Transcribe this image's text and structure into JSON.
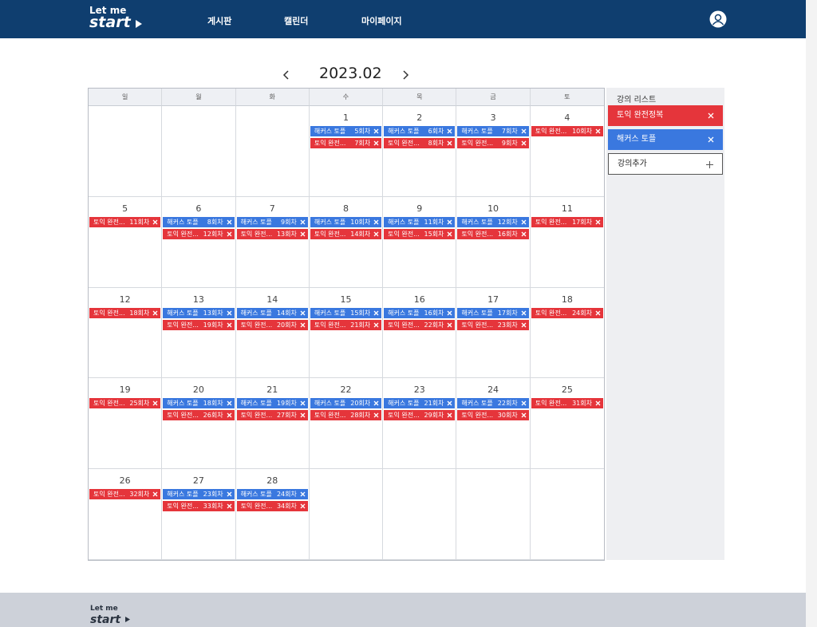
{
  "nav": {
    "logo_top": "Let me",
    "logo_bottom": "start",
    "menu": [
      "게시판",
      "캘린더",
      "마이페이지"
    ]
  },
  "calendar": {
    "month": "2023.02",
    "weekdays": [
      "일",
      "월",
      "화",
      "수",
      "목",
      "금",
      "토"
    ],
    "weeks": [
      [
        null,
        null,
        null,
        {
          "date": 1,
          "events": [
            {
              "title": "해커스 토플",
              "session": "5회차",
              "color": "#3a78df"
            },
            {
              "title": "토익 완전...",
              "session": "7회차",
              "color": "#e5353b"
            }
          ]
        },
        {
          "date": 2,
          "events": [
            {
              "title": "해커스 토플",
              "session": "6회차",
              "color": "#3a78df"
            },
            {
              "title": "토익 완전...",
              "session": "8회차",
              "color": "#e5353b"
            }
          ]
        },
        {
          "date": 3,
          "events": [
            {
              "title": "해커스 토플",
              "session": "7회차",
              "color": "#3a78df"
            },
            {
              "title": "토익 완전...",
              "session": "9회차",
              "color": "#e5353b"
            }
          ]
        },
        {
          "date": 4,
          "events": [
            {
              "title": "토익 완전...",
              "session": "10회차",
              "color": "#e5353b"
            }
          ]
        }
      ],
      [
        {
          "date": 5,
          "events": [
            {
              "title": "토익 완전...",
              "session": "11회차",
              "color": "#e5353b"
            }
          ]
        },
        {
          "date": 6,
          "events": [
            {
              "title": "해커스 토플",
              "session": "8회차",
              "color": "#3a78df"
            },
            {
              "title": "토익 완전...",
              "session": "12회차",
              "color": "#e5353b"
            }
          ]
        },
        {
          "date": 7,
          "events": [
            {
              "title": "해커스 토플",
              "session": "9회차",
              "color": "#3a78df"
            },
            {
              "title": "토익 완전...",
              "session": "13회차",
              "color": "#e5353b"
            }
          ]
        },
        {
          "date": 8,
          "events": [
            {
              "title": "해커스 토플",
              "session": "10회차",
              "color": "#3a78df"
            },
            {
              "title": "토익 완전...",
              "session": "14회차",
              "color": "#e5353b"
            }
          ]
        },
        {
          "date": 9,
          "events": [
            {
              "title": "해커스 토플",
              "session": "11회차",
              "color": "#3a78df"
            },
            {
              "title": "토익 완전...",
              "session": "15회차",
              "color": "#e5353b"
            }
          ]
        },
        {
          "date": 10,
          "events": [
            {
              "title": "해커스 토플",
              "session": "12회차",
              "color": "#3a78df"
            },
            {
              "title": "토익 완전...",
              "session": "16회차",
              "color": "#e5353b"
            }
          ]
        },
        {
          "date": 11,
          "events": [
            {
              "title": "토익 완전...",
              "session": "17회차",
              "color": "#e5353b"
            }
          ]
        }
      ],
      [
        {
          "date": 12,
          "events": [
            {
              "title": "토익 완전...",
              "session": "18회차",
              "color": "#e5353b"
            }
          ]
        },
        {
          "date": 13,
          "events": [
            {
              "title": "해커스 토플",
              "session": "13회차",
              "color": "#3a78df"
            },
            {
              "title": "토익 완전...",
              "session": "19회차",
              "color": "#e5353b"
            }
          ]
        },
        {
          "date": 14,
          "events": [
            {
              "title": "해커스 토플",
              "session": "14회차",
              "color": "#3a78df"
            },
            {
              "title": "토익 완전...",
              "session": "20회차",
              "color": "#e5353b"
            }
          ]
        },
        {
          "date": 15,
          "events": [
            {
              "title": "해커스 토플",
              "session": "15회차",
              "color": "#3a78df"
            },
            {
              "title": "토익 완전...",
              "session": "21회차",
              "color": "#e5353b"
            }
          ]
        },
        {
          "date": 16,
          "events": [
            {
              "title": "해커스 토플",
              "session": "16회차",
              "color": "#3a78df"
            },
            {
              "title": "토익 완전...",
              "session": "22회차",
              "color": "#e5353b"
            }
          ]
        },
        {
          "date": 17,
          "events": [
            {
              "title": "해커스 토플",
              "session": "17회차",
              "color": "#3a78df"
            },
            {
              "title": "토익 완전...",
              "session": "23회차",
              "color": "#e5353b"
            }
          ]
        },
        {
          "date": 18,
          "events": [
            {
              "title": "토익 완전...",
              "session": "24회차",
              "color": "#e5353b"
            }
          ]
        }
      ],
      [
        {
          "date": 19,
          "events": [
            {
              "title": "토익 완전...",
              "session": "25회차",
              "color": "#e5353b"
            }
          ]
        },
        {
          "date": 20,
          "events": [
            {
              "title": "해커스 토플",
              "session": "18회차",
              "color": "#3a78df"
            },
            {
              "title": "토익 완전...",
              "session": "26회차",
              "color": "#e5353b"
            }
          ]
        },
        {
          "date": 21,
          "events": [
            {
              "title": "해커스 토플",
              "session": "19회차",
              "color": "#3a78df"
            },
            {
              "title": "토익 완전...",
              "session": "27회차",
              "color": "#e5353b"
            }
          ]
        },
        {
          "date": 22,
          "events": [
            {
              "title": "해커스 토플",
              "session": "20회차",
              "color": "#3a78df"
            },
            {
              "title": "토익 완전...",
              "session": "28회차",
              "color": "#e5353b"
            }
          ]
        },
        {
          "date": 23,
          "events": [
            {
              "title": "해커스 토플",
              "session": "21회차",
              "color": "#3a78df"
            },
            {
              "title": "토익 완전...",
              "session": "29회차",
              "color": "#e5353b"
            }
          ]
        },
        {
          "date": 24,
          "events": [
            {
              "title": "해커스 토플",
              "session": "22회차",
              "color": "#3a78df"
            },
            {
              "title": "토익 완전...",
              "session": "30회차",
              "color": "#e5353b"
            }
          ]
        },
        {
          "date": 25,
          "events": [
            {
              "title": "토익 완전...",
              "session": "31회차",
              "color": "#e5353b"
            }
          ]
        }
      ],
      [
        {
          "date": 26,
          "events": [
            {
              "title": "토익 완전...",
              "session": "32회차",
              "color": "#e5353b"
            }
          ]
        },
        {
          "date": 27,
          "events": [
            {
              "title": "해커스 토플",
              "session": "23회차",
              "color": "#3a78df"
            },
            {
              "title": "토익 완전...",
              "session": "33회차",
              "color": "#e5353b"
            }
          ]
        },
        {
          "date": 28,
          "events": [
            {
              "title": "해커스 토플",
              "session": "24회차",
              "color": "#3a78df"
            },
            {
              "title": "토익 완전...",
              "session": "34회차",
              "color": "#e5353b"
            }
          ]
        },
        null,
        null,
        null,
        null
      ]
    ]
  },
  "courses": {
    "title": "강의 리스트",
    "items": [
      {
        "name": "토익 완전정복",
        "color": "#e5353b"
      },
      {
        "name": "해커스 토플",
        "color": "#3a78df"
      }
    ],
    "add_label": "강의추가"
  }
}
